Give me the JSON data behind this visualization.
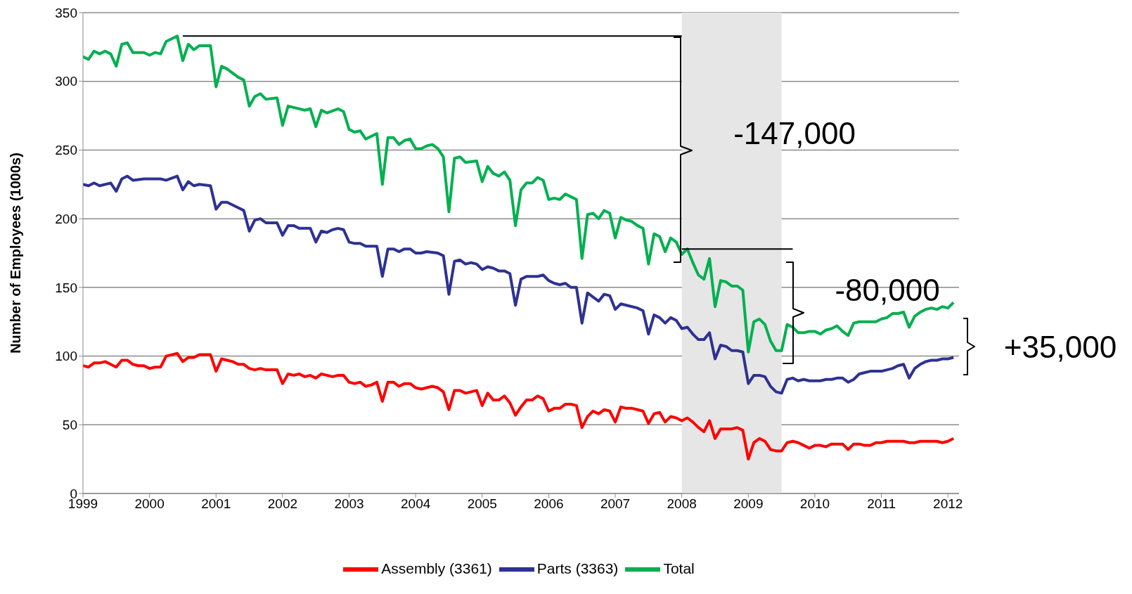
{
  "chart_data": {
    "type": "line",
    "ylabel": "Number of Employees (1000s)",
    "x": [
      "1999-01",
      "1999-02",
      "1999-03",
      "1999-04",
      "1999-05",
      "1999-06",
      "1999-07",
      "1999-08",
      "1999-09",
      "1999-10",
      "1999-11",
      "1999-12",
      "2000-01",
      "2000-02",
      "2000-03",
      "2000-04",
      "2000-05",
      "2000-06",
      "2000-07",
      "2000-08",
      "2000-09",
      "2000-10",
      "2000-11",
      "2000-12",
      "2001-01",
      "2001-02",
      "2001-03",
      "2001-04",
      "2001-05",
      "2001-06",
      "2001-07",
      "2001-08",
      "2001-09",
      "2001-10",
      "2001-11",
      "2001-12",
      "2002-01",
      "2002-02",
      "2002-03",
      "2002-04",
      "2002-05",
      "2002-06",
      "2002-07",
      "2002-08",
      "2002-09",
      "2002-10",
      "2002-11",
      "2002-12",
      "2003-01",
      "2003-02",
      "2003-03",
      "2003-04",
      "2003-05",
      "2003-06",
      "2003-07",
      "2003-08",
      "2003-09",
      "2003-10",
      "2003-11",
      "2003-12",
      "2004-01",
      "2004-02",
      "2004-03",
      "2004-04",
      "2004-05",
      "2004-06",
      "2004-07",
      "2004-08",
      "2004-09",
      "2004-10",
      "2004-11",
      "2004-12",
      "2005-01",
      "2005-02",
      "2005-03",
      "2005-04",
      "2005-05",
      "2005-06",
      "2005-07",
      "2005-08",
      "2005-09",
      "2005-10",
      "2005-11",
      "2005-12",
      "2006-01",
      "2006-02",
      "2006-03",
      "2006-04",
      "2006-05",
      "2006-06",
      "2006-07",
      "2006-08",
      "2006-09",
      "2006-10",
      "2006-11",
      "2006-12",
      "2007-01",
      "2007-02",
      "2007-03",
      "2007-04",
      "2007-05",
      "2007-06",
      "2007-07",
      "2007-08",
      "2007-09",
      "2007-10",
      "2007-11",
      "2007-12",
      "2008-01",
      "2008-02",
      "2008-03",
      "2008-04",
      "2008-05",
      "2008-06",
      "2008-07",
      "2008-08",
      "2008-09",
      "2008-10",
      "2008-11",
      "2008-12",
      "2009-01",
      "2009-02",
      "2009-03",
      "2009-04",
      "2009-05",
      "2009-06",
      "2009-07",
      "2009-08",
      "2009-09",
      "2009-10",
      "2009-11",
      "2009-12",
      "2010-01",
      "2010-02",
      "2010-03",
      "2010-04",
      "2010-05",
      "2010-06",
      "2010-07",
      "2010-08",
      "2010-09",
      "2010-10",
      "2010-11",
      "2010-12",
      "2011-01",
      "2011-02",
      "2011-03",
      "2011-04",
      "2011-05",
      "2011-06",
      "2011-07",
      "2011-08",
      "2011-09",
      "2011-10",
      "2011-11",
      "2011-12",
      "2012-01",
      "2012-02"
    ],
    "series": [
      {
        "name": "Assembly (3361)",
        "color": "#ff0000",
        "values": [
          93,
          92,
          95,
          95,
          96,
          94,
          92,
          97,
          97,
          94,
          93,
          93,
          91,
          92,
          92,
          100,
          101,
          102,
          96,
          99,
          99,
          101,
          101,
          101,
          89,
          98,
          97,
          96,
          94,
          94,
          91,
          90,
          91,
          90,
          90,
          90,
          80,
          87,
          86,
          87,
          85,
          86,
          84,
          87,
          86,
          85,
          86,
          86,
          81,
          80,
          81,
          78,
          79,
          81,
          67,
          81,
          81,
          78,
          80,
          80,
          77,
          76,
          77,
          78,
          77,
          74,
          61,
          75,
          75,
          73,
          74,
          75,
          64,
          73,
          68,
          68,
          71,
          66,
          57,
          63,
          68,
          68,
          71,
          69,
          60,
          62,
          62,
          65,
          65,
          64,
          48,
          56,
          60,
          58,
          61,
          60,
          52,
          63,
          62,
          62,
          61,
          60,
          51,
          58,
          59,
          52,
          56,
          55,
          53,
          55,
          52,
          48,
          45,
          53,
          40,
          47,
          47,
          47,
          48,
          46,
          25,
          37,
          40,
          38,
          32,
          31,
          31,
          37,
          38,
          37,
          35,
          33,
          35,
          35,
          34,
          36,
          36,
          36,
          32,
          36,
          36,
          35,
          35,
          37,
          37,
          38,
          38,
          38,
          38,
          37,
          37,
          38,
          38,
          38,
          38,
          37,
          38,
          40
        ]
      },
      {
        "name": "Parts (3363)",
        "color": "#2e3192",
        "x": [
          "1999-01",
          "1999-02",
          "1999-03",
          "1999-04",
          "1999-06",
          "1999-07",
          "1999-08",
          "1999-09",
          "1999-10",
          "1999-12",
          "2000-03",
          "2000-04",
          "2000-06",
          "2000-07",
          "2000-08",
          "2000-09",
          "2000-10",
          "2000-12",
          "2001-01",
          "2001-02",
          "2001-03",
          "2001-05",
          "2001-06",
          "2001-07",
          "2001-08",
          "2001-09",
          "2001-10",
          "2001-12",
          "2002-01",
          "2002-02",
          "2002-03",
          "2002-04",
          "2002-06",
          "2002-07",
          "2002-08",
          "2002-09",
          "2002-10",
          "2002-11",
          "2002-12",
          "2003-01",
          "2003-02",
          "2003-03",
          "2003-04",
          "2003-06",
          "2003-07",
          "2003-08",
          "2003-09",
          "2003-10",
          "2003-11",
          "2003-12",
          "2004-01",
          "2004-02",
          "2004-03",
          "2004-05",
          "2004-06",
          "2004-07",
          "2004-08",
          "2004-09",
          "2004-10",
          "2004-11",
          "2004-12",
          "2005-01",
          "2005-02",
          "2005-03",
          "2005-04",
          "2005-05",
          "2005-06",
          "2005-07",
          "2005-08",
          "2005-09",
          "2005-11",
          "2005-12",
          "2006-01",
          "2006-02",
          "2006-03",
          "2006-04",
          "2006-05",
          "2006-06",
          "2006-07",
          "2006-08",
          "2006-09",
          "2006-10",
          "2006-11",
          "2006-12",
          "2007-01",
          "2007-02",
          "2007-03",
          "2007-05",
          "2007-06",
          "2007-07",
          "2007-08",
          "2007-09",
          "2007-10",
          "2007-11",
          "2007-12",
          "2008-01",
          "2008-02",
          "2008-03",
          "2008-04",
          "2008-05",
          "2008-06",
          "2008-07",
          "2008-08",
          "2008-09",
          "2008-10",
          "2008-11",
          "2008-12",
          "2009-01",
          "2009-02",
          "2009-03",
          "2009-04",
          "2009-05",
          "2009-06",
          "2009-07",
          "2009-08",
          "2009-09",
          "2009-10",
          "2009-11",
          "2009-12",
          "2010-01",
          "2010-02",
          "2010-03",
          "2010-04",
          "2010-05",
          "2010-06",
          "2010-07",
          "2010-08",
          "2010-09",
          "2010-10",
          "2010-11",
          "2010-12",
          "2011-01",
          "2011-02",
          "2011-03",
          "2011-04",
          "2011-05",
          "2011-06",
          "2011-07",
          "2011-08",
          "2011-09",
          "2011-10",
          "2011-11",
          "2011-12",
          "2012-01",
          "2012-02"
        ],
        "values": [
          225,
          224,
          226,
          224,
          226,
          220,
          229,
          231,
          228,
          229,
          229,
          228,
          231,
          221,
          227,
          224,
          225,
          224,
          207,
          212,
          212,
          208,
          206,
          191,
          199,
          200,
          197,
          197,
          188,
          195,
          195,
          193,
          193,
          183,
          191,
          190,
          192,
          193,
          192,
          183,
          182,
          182,
          180,
          180,
          158,
          178,
          178,
          176,
          178,
          178,
          175,
          175,
          176,
          175,
          173,
          145,
          169,
          170,
          167,
          168,
          167,
          163,
          165,
          164,
          162,
          162,
          160,
          137,
          156,
          158,
          158,
          159,
          155,
          153,
          152,
          153,
          150,
          150,
          124,
          146,
          143,
          140,
          145,
          144,
          134,
          138,
          137,
          135,
          133,
          116,
          130,
          128,
          124,
          128,
          126,
          120,
          121,
          116,
          112,
          112,
          117,
          98,
          108,
          107,
          104,
          104,
          103,
          80,
          86,
          86,
          85,
          78,
          74,
          73,
          83,
          84,
          82,
          83,
          82,
          82,
          82,
          83,
          83,
          84,
          84,
          81,
          83,
          87,
          88,
          89,
          89,
          89,
          90,
          91,
          93,
          94,
          84,
          91,
          94,
          96,
          97,
          97,
          98,
          98,
          99
        ]
      },
      {
        "name": "Total",
        "color": "#00b050",
        "x": [
          "1999-01",
          "1999-02",
          "1999-03",
          "1999-04",
          "1999-05",
          "1999-06",
          "1999-07",
          "1999-08",
          "1999-09",
          "1999-10",
          "1999-12",
          "2000-01",
          "2000-02",
          "2000-03",
          "2000-04",
          "2000-06",
          "2000-07",
          "2000-08",
          "2000-09",
          "2000-10",
          "2000-12",
          "2001-01",
          "2001-02",
          "2001-03",
          "2001-05",
          "2001-06",
          "2001-07",
          "2001-08",
          "2001-09",
          "2001-10",
          "2001-12",
          "2002-01",
          "2002-02",
          "2002-03",
          "2002-05",
          "2002-06",
          "2002-07",
          "2002-08",
          "2002-09",
          "2002-11",
          "2002-12",
          "2003-01",
          "2003-02",
          "2003-03",
          "2003-04",
          "2003-06",
          "2003-07",
          "2003-08",
          "2003-09",
          "2003-10",
          "2003-11",
          "2003-12",
          "2004-01",
          "2004-02",
          "2004-03",
          "2004-04",
          "2004-05",
          "2004-06",
          "2004-07",
          "2004-08",
          "2004-09",
          "2004-10",
          "2004-12",
          "2005-01",
          "2005-02",
          "2005-03",
          "2005-04",
          "2005-05",
          "2005-06",
          "2005-07",
          "2005-08",
          "2005-09",
          "2005-10",
          "2005-11",
          "2005-12",
          "2006-01",
          "2006-02",
          "2006-03",
          "2006-04",
          "2006-05",
          "2006-06",
          "2006-07",
          "2006-08",
          "2006-09",
          "2006-10",
          "2006-11",
          "2006-12",
          "2007-01",
          "2007-02",
          "2007-03",
          "2007-04",
          "2007-05",
          "2007-06",
          "2007-07",
          "2007-08",
          "2007-09",
          "2007-10",
          "2007-11",
          "2007-12",
          "2008-01",
          "2008-02",
          "2008-03",
          "2008-04",
          "2008-05",
          "2008-06",
          "2008-07",
          "2008-08",
          "2008-09",
          "2008-10",
          "2008-11",
          "2008-12",
          "2009-01",
          "2009-02",
          "2009-03",
          "2009-04",
          "2009-05",
          "2009-06",
          "2009-07",
          "2009-08",
          "2009-09",
          "2009-10",
          "2009-11",
          "2009-12",
          "2010-01",
          "2010-02",
          "2010-03",
          "2010-04",
          "2010-05",
          "2010-06",
          "2010-07",
          "2010-08",
          "2010-09",
          "2010-10",
          "2010-11",
          "2010-12",
          "2011-01",
          "2011-02",
          "2011-03",
          "2011-04",
          "2011-05",
          "2011-06",
          "2011-07",
          "2011-08",
          "2011-09",
          "2011-10",
          "2011-11",
          "2011-12",
          "2012-01",
          "2012-02"
        ],
        "values": [
          318,
          316,
          322,
          320,
          322,
          320,
          311,
          327,
          328,
          321,
          321,
          319,
          321,
          320,
          329,
          333,
          315,
          327,
          323,
          326,
          326,
          296,
          311,
          309,
          303,
          301,
          282,
          289,
          291,
          287,
          288,
          268,
          282,
          281,
          279,
          280,
          267,
          279,
          277,
          280,
          278,
          265,
          263,
          264,
          258,
          262,
          225,
          259,
          259,
          254,
          257,
          258,
          251,
          251,
          253,
          254,
          251,
          245,
          205,
          244,
          245,
          241,
          242,
          227,
          238,
          233,
          231,
          234,
          228,
          195,
          221,
          226,
          226,
          230,
          228,
          214,
          215,
          214,
          218,
          216,
          214,
          171,
          203,
          204,
          200,
          206,
          204,
          186,
          201,
          199,
          198,
          195,
          193,
          167,
          189,
          187,
          176,
          186,
          183,
          174,
          178,
          168,
          159,
          156,
          171,
          136,
          155,
          154,
          151,
          151,
          148,
          103,
          125,
          127,
          123,
          111,
          104,
          104,
          123,
          121,
          117,
          117,
          118,
          118,
          116,
          119,
          120,
          122,
          118,
          115,
          124,
          125,
          125,
          125,
          125,
          127,
          128,
          131,
          131,
          132,
          121,
          129,
          132,
          134,
          135,
          134,
          136,
          135,
          139
        ]
      },
      {
        "type": "line",
        "color": "#000000",
        "x": [
          "2000-07",
          "2008-01"
        ],
        "values": [
          333,
          333
        ]
      },
      {
        "type": "line",
        "color": "#000000",
        "x": [
          "2008-01",
          "2009-09"
        ],
        "values": [
          178,
          178
        ]
      }
    ],
    "xlim": [
      "1999-01",
      "2012-03"
    ],
    "xticks": [
      "1999",
      "2000",
      "2001",
      "2002",
      "2003",
      "2004",
      "2005",
      "2006",
      "2007",
      "2008",
      "2009",
      "2010",
      "2011",
      "2012"
    ],
    "ylim": [
      0,
      350
    ],
    "yticks": [
      0,
      50,
      100,
      150,
      200,
      250,
      300,
      350
    ],
    "bands": [
      {
        "axis": "x",
        "from": "2008-01",
        "to": "2009-07",
        "color": "#e6e6e6"
      }
    ],
    "annotations": [
      "-147,000",
      "-80,000",
      "+35,000"
    ],
    "grid": "y",
    "legend": "bottom"
  }
}
